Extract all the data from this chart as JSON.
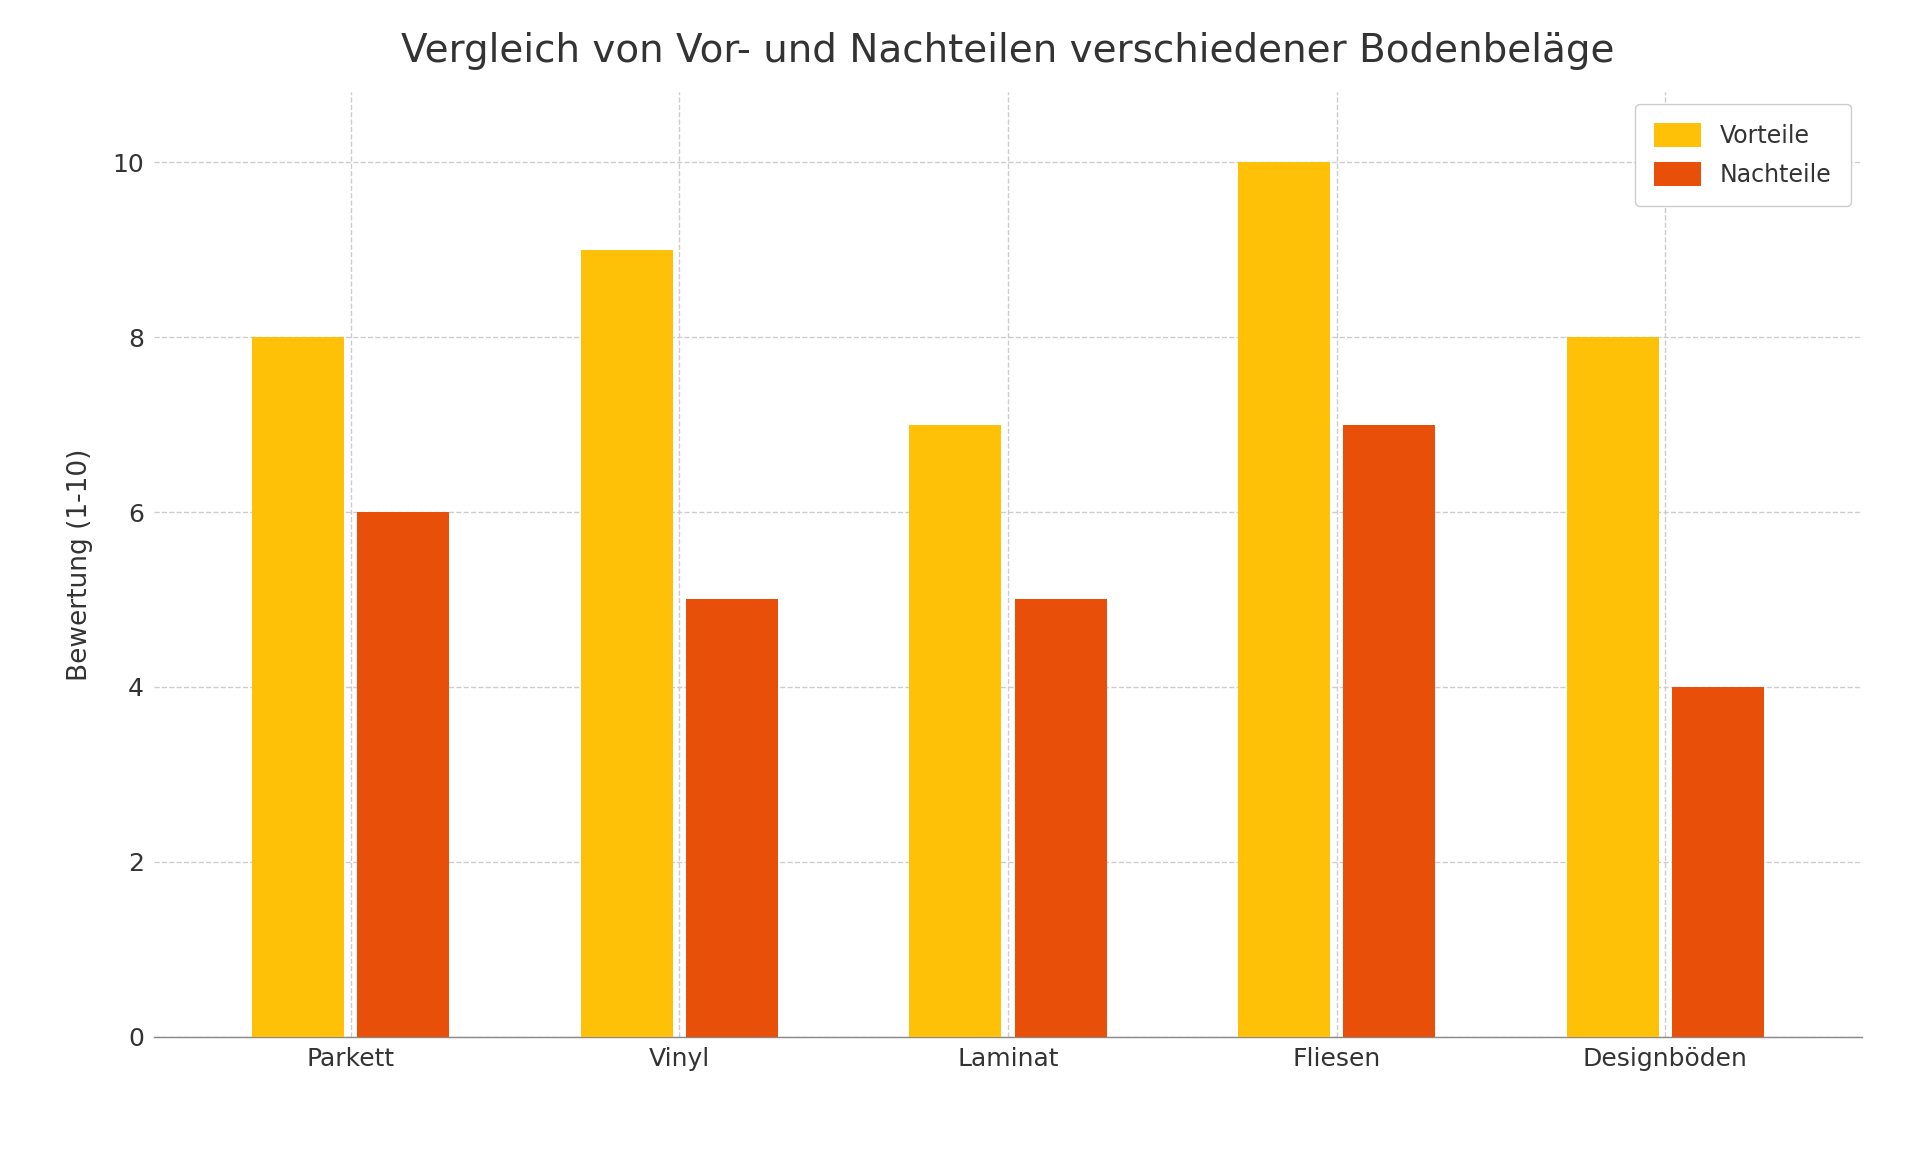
{
  "title": "Vergleich von Vor- und Nachteilen verschiedener Bodenbeläge",
  "ylabel": "Bewertung (1-10)",
  "categories": [
    "Parkett",
    "Vinyl",
    "Laminat",
    "Fliesen",
    "Designböden"
  ],
  "vorteile": [
    8,
    9,
    7,
    10,
    8
  ],
  "nachteile": [
    6,
    5,
    5,
    7,
    4
  ],
  "color_vorteile": "#FFC107",
  "color_nachteile": "#E8500A",
  "ylim": [
    0,
    10.8
  ],
  "yticks": [
    0,
    2,
    4,
    6,
    8,
    10
  ],
  "legend_labels": [
    "Vorteile",
    "Nachteile"
  ],
  "background_color": "#FFFFFF",
  "title_color": "#333333",
  "axis_color": "#333333",
  "grid_color": "#CCCCCC",
  "bar_width": 0.28,
  "bar_gap": 0.04,
  "title_fontsize": 28,
  "label_fontsize": 19,
  "tick_fontsize": 18,
  "legend_fontsize": 17
}
